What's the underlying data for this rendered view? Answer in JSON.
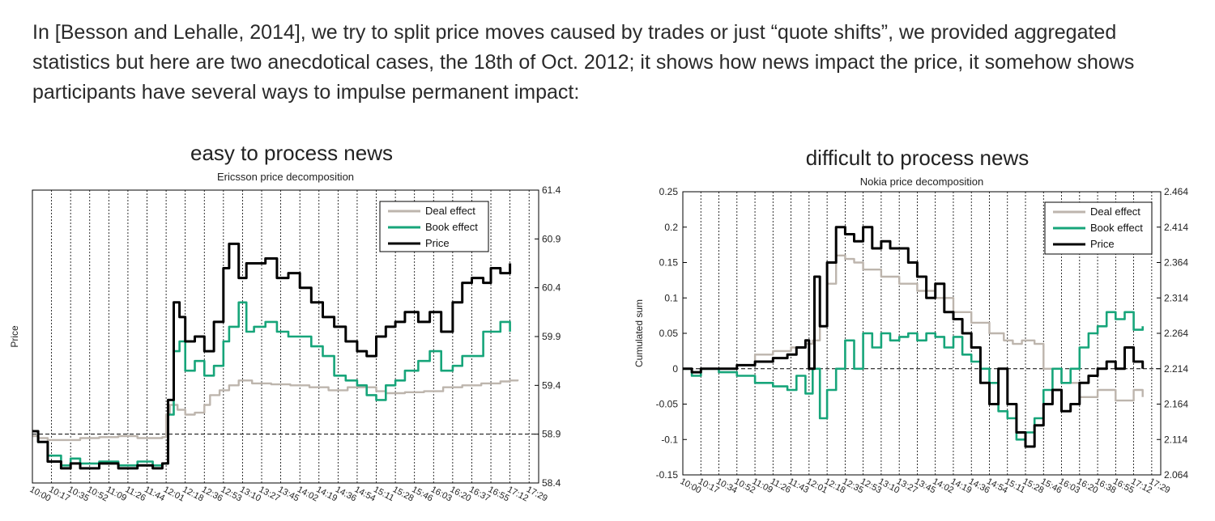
{
  "intro": {
    "paragraph": "In [Besson and Lehalle, 2014], we try to split price moves caused by trades or just “quote shifts”, we provided aggregated statistics but here are two anecdotical cases, the 18th of Oct. 2012; it shows how news impact the price, it somehow shows participants have several ways to impulse permanent impact:"
  },
  "colors": {
    "deal": "#bdb5ad",
    "book": "#17a57a",
    "price": "#000000"
  },
  "chart_data": [
    {
      "type": "line",
      "heading": "easy to process news",
      "title": "Ericsson price decomposition",
      "ylabel": "Price",
      "xlabel": "",
      "right_axis": {
        "ticks": [
          "58.4",
          "58.9",
          "59.4",
          "59.9",
          "60.4",
          "60.9",
          "61.4"
        ],
        "ylim": [
          58.4,
          61.4
        ]
      },
      "left_axis": {
        "ticks": [],
        "ylim": [
          58.4,
          61.4
        ]
      },
      "x_ticks": [
        "10:00",
        "10:17",
        "10:35",
        "10:52",
        "11:09",
        "11:26",
        "11:44",
        "12:01",
        "12:18",
        "12:36",
        "12:53",
        "13:10",
        "13:27",
        "13:45",
        "14:02",
        "14:19",
        "14:36",
        "14:54",
        "15:11",
        "15:28",
        "15:46",
        "16:03",
        "16:20",
        "16:37",
        "16:55",
        "17:12",
        "17:29"
      ],
      "reference_line": 58.9,
      "grid": "vertical-dashed",
      "legend": {
        "placement": "top-right",
        "entries": [
          "Deal effect",
          "Book effect",
          "Price"
        ]
      },
      "series": [
        {
          "name": "Deal effect",
          "color_key": "deal",
          "x": [
            0,
            0.3,
            0.8,
            1.5,
            2.5,
            3.5,
            4.5,
            5.5,
            6.5,
            6.8,
            7.0,
            7.2,
            7.6,
            8.0,
            8.5,
            9.0,
            9.3,
            9.8,
            10.3,
            10.8,
            11.5,
            12.5,
            13.5,
            14.5,
            15.5,
            16.5,
            17.5,
            18.0,
            18.5,
            19.5,
            20.5,
            21.5,
            22.5,
            23.5,
            24.5,
            25.0,
            25.4
          ],
          "values": [
            58.88,
            58.86,
            58.84,
            58.84,
            58.86,
            58.87,
            58.88,
            58.86,
            58.86,
            58.87,
            59.1,
            59.2,
            59.15,
            59.1,
            59.12,
            59.2,
            59.3,
            59.35,
            59.4,
            59.45,
            59.42,
            59.41,
            59.4,
            59.38,
            59.35,
            59.38,
            59.38,
            59.34,
            59.32,
            59.33,
            59.34,
            59.38,
            59.4,
            59.42,
            59.44,
            59.45,
            59.46
          ]
        },
        {
          "name": "Book effect",
          "color_key": "book",
          "x": [
            0,
            0.3,
            0.8,
            1.5,
            2.0,
            2.5,
            3.5,
            4.5,
            5.5,
            6.3,
            6.8,
            7.1,
            7.4,
            7.7,
            8.0,
            8.5,
            9.0,
            9.5,
            10.0,
            10.3,
            10.8,
            11.2,
            11.6,
            12.2,
            12.8,
            13.4,
            14.0,
            14.6,
            15.2,
            15.8,
            16.4,
            17.0,
            17.5,
            18.0,
            18.5,
            19.0,
            19.5,
            20.2,
            20.8,
            21.4,
            22.0,
            22.5,
            23.0,
            23.6,
            24.0,
            24.5,
            25.0
          ],
          "values": [
            58.93,
            58.82,
            58.68,
            58.58,
            58.65,
            58.6,
            58.62,
            58.58,
            58.62,
            58.58,
            58.6,
            59.1,
            59.75,
            59.85,
            59.55,
            59.65,
            59.5,
            59.6,
            59.85,
            60.0,
            60.25,
            59.95,
            60.0,
            60.05,
            59.95,
            59.9,
            59.9,
            59.8,
            59.7,
            59.5,
            59.45,
            59.4,
            59.3,
            59.25,
            59.4,
            59.45,
            59.55,
            59.65,
            59.75,
            59.55,
            59.6,
            59.7,
            59.7,
            59.95,
            59.95,
            60.05,
            59.95
          ]
        },
        {
          "name": "Price",
          "color_key": "price",
          "x": [
            0,
            0.3,
            0.8,
            1.5,
            2.0,
            2.5,
            3.5,
            4.5,
            5.5,
            6.3,
            6.8,
            7.1,
            7.4,
            7.7,
            8.0,
            8.5,
            9.0,
            9.5,
            10.0,
            10.3,
            10.8,
            11.2,
            11.6,
            12.2,
            12.8,
            13.4,
            14.0,
            14.6,
            15.2,
            15.8,
            16.4,
            17.0,
            17.5,
            18.0,
            18.5,
            19.0,
            19.5,
            20.2,
            20.8,
            21.4,
            22.0,
            22.5,
            23.0,
            23.6,
            24.0,
            24.5,
            25.0
          ],
          "values": [
            58.93,
            58.82,
            58.62,
            58.55,
            58.6,
            58.55,
            58.6,
            58.55,
            58.58,
            58.55,
            58.6,
            59.25,
            60.25,
            60.1,
            59.85,
            59.9,
            59.75,
            60.05,
            60.6,
            60.85,
            60.5,
            60.65,
            60.65,
            60.7,
            60.5,
            60.55,
            60.4,
            60.25,
            60.1,
            60.0,
            59.85,
            59.75,
            59.7,
            59.9,
            60.0,
            60.05,
            60.15,
            60.05,
            60.15,
            59.95,
            60.25,
            60.45,
            60.5,
            60.45,
            60.6,
            60.55,
            60.65
          ]
        }
      ]
    },
    {
      "type": "line",
      "heading": "difficult to process news",
      "title": "Nokia  price decomposition",
      "ylabel": "Cumulated sum",
      "xlabel": "",
      "left_axis": {
        "ticks": [
          "-0.15",
          "-0.1",
          "-0.05",
          "0",
          "0.05",
          "0.1",
          "0.15",
          "0.2",
          "0.25"
        ],
        "ylim": [
          -0.15,
          0.25
        ]
      },
      "right_axis": {
        "ticks": [
          "2.064",
          "2.114",
          "2.164",
          "2.214",
          "2.264",
          "2.314",
          "2.364",
          "2.414",
          "2.464"
        ],
        "ylim": [
          2.064,
          2.464
        ]
      },
      "x_ticks": [
        "10:00",
        "10:17",
        "10:34",
        "10:52",
        "11:09",
        "11:26",
        "11:43",
        "12:01",
        "12:18",
        "12:35",
        "12:53",
        "13:10",
        "13:27",
        "13:45",
        "14:02",
        "14:19",
        "14:36",
        "14:54",
        "15:11",
        "15:28",
        "15:46",
        "16:03",
        "16:20",
        "16:38",
        "16:55",
        "17:12",
        "17:29"
      ],
      "reference_line": 0,
      "grid": "vertical-dashed",
      "legend": {
        "placement": "top-right",
        "entries": [
          "Deal effect",
          "Book effect",
          "Price"
        ]
      },
      "series": [
        {
          "name": "Deal effect",
          "color_key": "deal",
          "x": [
            0,
            0.5,
            1.0,
            2.0,
            3.0,
            4.0,
            5.0,
            6.0,
            6.8,
            7.2,
            7.6,
            8.0,
            8.5,
            9.0,
            9.5,
            10.0,
            11.0,
            12.0,
            13.0,
            14.0,
            15.0,
            16.0,
            17.0,
            17.8,
            18.3,
            18.8,
            19.5,
            20.0,
            21.0,
            22.0,
            23.0,
            24.0,
            25.0,
            25.5
          ],
          "values": [
            0.0,
            -0.005,
            0.0,
            0.0,
            0.005,
            0.02,
            0.025,
            0.03,
            0.035,
            0.04,
            0.06,
            0.12,
            0.16,
            0.155,
            0.15,
            0.14,
            0.13,
            0.12,
            0.11,
            0.1,
            0.08,
            0.065,
            0.05,
            0.04,
            0.035,
            0.04,
            0.035,
            0.0,
            -0.02,
            -0.04,
            -0.03,
            -0.045,
            -0.03,
            -0.04
          ]
        },
        {
          "name": "Book effect",
          "color_key": "book",
          "x": [
            0,
            0.5,
            1.0,
            2.0,
            3.0,
            4.0,
            5.0,
            5.8,
            6.3,
            6.8,
            7.2,
            7.6,
            8.0,
            8.5,
            9.0,
            9.5,
            10.0,
            10.5,
            11.0,
            11.5,
            12.0,
            12.5,
            13.0,
            13.5,
            14.0,
            14.5,
            15.0,
            15.5,
            16.0,
            16.5,
            17.0,
            17.5,
            18.0,
            18.5,
            19.0,
            19.5,
            20.0,
            20.5,
            21.0,
            21.5,
            22.0,
            22.5,
            23.0,
            23.5,
            24.0,
            24.5,
            25.0,
            25.5
          ],
          "values": [
            0.0,
            -0.01,
            0.0,
            -0.005,
            -0.01,
            -0.02,
            -0.025,
            -0.03,
            -0.01,
            -0.035,
            0.0,
            -0.07,
            -0.03,
            0.0,
            0.04,
            0.0,
            0.05,
            0.03,
            0.05,
            0.04,
            0.045,
            0.05,
            0.04,
            0.05,
            0.045,
            0.03,
            0.045,
            0.02,
            0.01,
            0.0,
            -0.02,
            -0.06,
            -0.07,
            -0.1,
            -0.09,
            -0.07,
            -0.03,
            0.0,
            -0.02,
            0.0,
            0.03,
            0.05,
            0.06,
            0.08,
            0.07,
            0.08,
            0.055,
            0.06
          ]
        },
        {
          "name": "Price",
          "color_key": "price",
          "x": [
            0,
            0.5,
            1.0,
            2.0,
            3.0,
            4.0,
            5.0,
            5.8,
            6.3,
            6.8,
            7.0,
            7.3,
            7.6,
            8.0,
            8.5,
            9.0,
            9.5,
            10.0,
            10.5,
            11.0,
            11.5,
            12.0,
            12.5,
            13.0,
            13.5,
            14.0,
            14.5,
            15.0,
            15.5,
            16.0,
            16.5,
            17.0,
            17.5,
            18.0,
            18.5,
            19.0,
            19.5,
            20.0,
            20.5,
            21.0,
            21.5,
            22.0,
            22.5,
            23.0,
            23.5,
            24.0,
            24.5,
            25.0,
            25.5
          ],
          "values": [
            0.0,
            -0.005,
            0.0,
            0.0,
            0.005,
            0.01,
            0.015,
            0.02,
            0.03,
            0.04,
            0.0,
            0.13,
            0.06,
            0.15,
            0.2,
            0.19,
            0.18,
            0.2,
            0.17,
            0.18,
            0.17,
            0.17,
            0.15,
            0.13,
            0.1,
            0.12,
            0.08,
            0.07,
            0.05,
            0.03,
            -0.02,
            -0.05,
            0.0,
            -0.05,
            -0.09,
            -0.11,
            -0.08,
            -0.05,
            -0.03,
            -0.06,
            -0.05,
            -0.02,
            -0.01,
            0.0,
            0.01,
            0.0,
            0.03,
            0.01,
            0.0
          ]
        }
      ]
    }
  ]
}
